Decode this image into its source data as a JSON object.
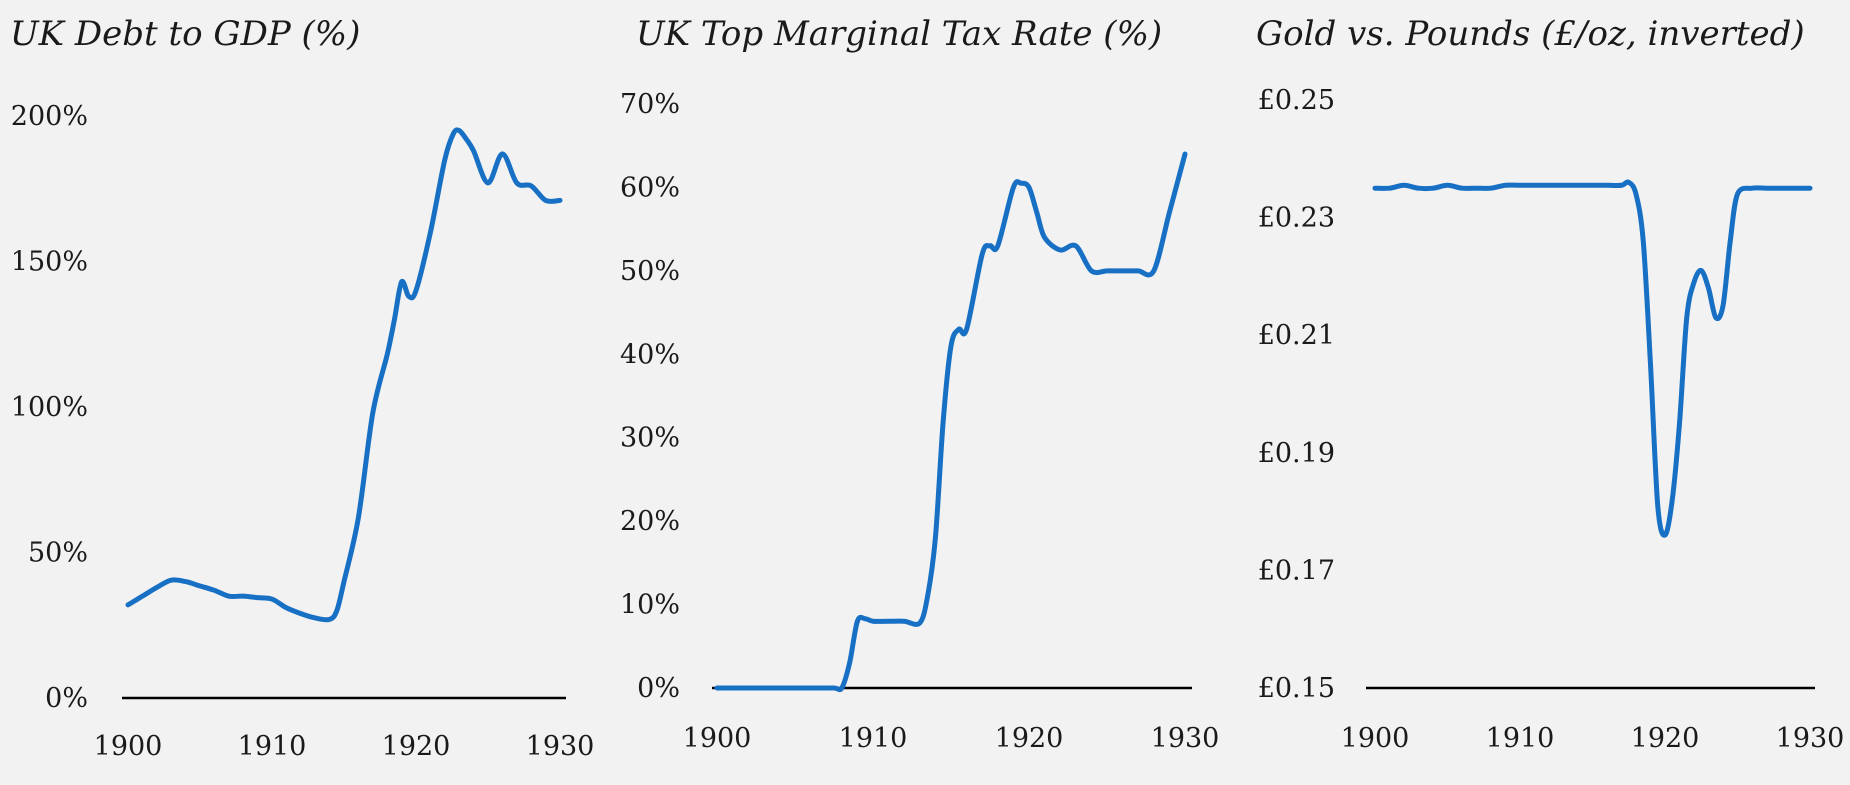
{
  "accent_color": "#1870c4",
  "chart_data": [
    {
      "type": "line",
      "title": "UK Debt to GDP (%)",
      "xlabel": "",
      "ylabel": "",
      "xlim": [
        1900,
        1930
      ],
      "ylim": [
        0,
        200
      ],
      "x_ticks": [
        1900,
        1910,
        1920,
        1930
      ],
      "x_tick_labels": [
        "1900",
        "1910",
        "1920",
        "1930"
      ],
      "y_ticks": [
        0,
        50,
        100,
        150,
        200
      ],
      "y_tick_labels": [
        "0%",
        "50%",
        "100%",
        "150%",
        "200%"
      ],
      "series": [
        {
          "name": "UK Debt to GDP",
          "x": [
            1900,
            1901,
            1902,
            1903,
            1904,
            1905,
            1906,
            1907,
            1908,
            1909,
            1910,
            1911,
            1912,
            1913,
            1914,
            1914.5,
            1915,
            1916,
            1917,
            1918,
            1918.5,
            1919,
            1919.5,
            1920,
            1921,
            1922,
            1922.6,
            1923,
            1923.5,
            1924,
            1925,
            1926,
            1927,
            1928,
            1929,
            1930
          ],
          "values": [
            32,
            35,
            38,
            40.5,
            40,
            38.5,
            37,
            35,
            35,
            34.5,
            34,
            31,
            29,
            27.5,
            27,
            30,
            40,
            62,
            98,
            118,
            130,
            143,
            138,
            140,
            160,
            185,
            194,
            195,
            192,
            188,
            177,
            187,
            177,
            176,
            171,
            171
          ]
        }
      ]
    },
    {
      "type": "line",
      "title": "UK Top Marginal Tax Rate (%)",
      "xlabel": "",
      "ylabel": "",
      "xlim": [
        1900,
        1930
      ],
      "ylim": [
        0,
        70
      ],
      "x_ticks": [
        1900,
        1910,
        1920,
        1930
      ],
      "x_tick_labels": [
        "1900",
        "1910",
        "1920",
        "1930"
      ],
      "y_ticks": [
        0,
        10,
        20,
        30,
        40,
        50,
        60,
        70
      ],
      "y_tick_labels": [
        "0%",
        "10%",
        "20%",
        "30%",
        "40%",
        "50%",
        "60%",
        "70%"
      ],
      "series": [
        {
          "name": "UK Top Marginal Tax Rate",
          "x": [
            1900,
            1902,
            1904,
            1906,
            1907.5,
            1908,
            1908.5,
            1909,
            1909.5,
            1910,
            1911,
            1912,
            1913,
            1913.5,
            1914,
            1914.5,
            1915,
            1915.5,
            1916,
            1917,
            1917.5,
            1918,
            1919,
            1919.5,
            1920,
            1920.5,
            1921,
            1922,
            1923,
            1924,
            1925,
            1926,
            1927,
            1928,
            1929,
            1930
          ],
          "values": [
            0,
            0,
            0,
            0,
            0,
            0,
            3,
            8,
            8.3,
            8,
            8,
            8,
            7.8,
            11,
            18,
            32,
            41,
            43,
            43,
            52,
            53,
            53,
            60,
            60.5,
            60,
            57,
            54,
            52.5,
            53,
            50,
            50,
            50,
            50,
            50,
            57,
            64
          ]
        }
      ]
    },
    {
      "type": "line",
      "title": "Gold vs. Pounds (£/oz, inverted)",
      "xlabel": "",
      "ylabel": "",
      "xlim": [
        1900,
        1930
      ],
      "ylim": [
        0.15,
        0.25
      ],
      "x_ticks": [
        1900,
        1910,
        1920,
        1930
      ],
      "x_tick_labels": [
        "1900",
        "1910",
        "1920",
        "1930"
      ],
      "y_ticks": [
        0.15,
        0.17,
        0.19,
        0.21,
        0.23,
        0.25
      ],
      "y_tick_labels": [
        "£0.15",
        "£0.17",
        "£0.19",
        "£0.21",
        "£0.23",
        "£0.25"
      ],
      "series": [
        {
          "name": "Gold vs. Pounds",
          "x": [
            1900,
            1901,
            1902,
            1903,
            1904,
            1905,
            1906,
            1907,
            1908,
            1909,
            1910,
            1911,
            1912,
            1913,
            1914,
            1915,
            1916,
            1917,
            1917.5,
            1918,
            1918.5,
            1919,
            1919.5,
            1920,
            1920.5,
            1921,
            1921.5,
            1922,
            1922.5,
            1923,
            1923.5,
            1924,
            1924.5,
            1925,
            1926,
            1927,
            1928,
            1929,
            1930
          ],
          "values": [
            0.235,
            0.235,
            0.2355,
            0.235,
            0.235,
            0.2355,
            0.235,
            0.235,
            0.235,
            0.2355,
            0.2355,
            0.2355,
            0.2355,
            0.2355,
            0.2355,
            0.2355,
            0.2355,
            0.2355,
            0.236,
            0.234,
            0.226,
            0.205,
            0.181,
            0.176,
            0.182,
            0.195,
            0.213,
            0.219,
            0.221,
            0.218,
            0.213,
            0.215,
            0.226,
            0.234,
            0.235,
            0.235,
            0.235,
            0.235,
            0.235
          ]
        }
      ]
    }
  ]
}
